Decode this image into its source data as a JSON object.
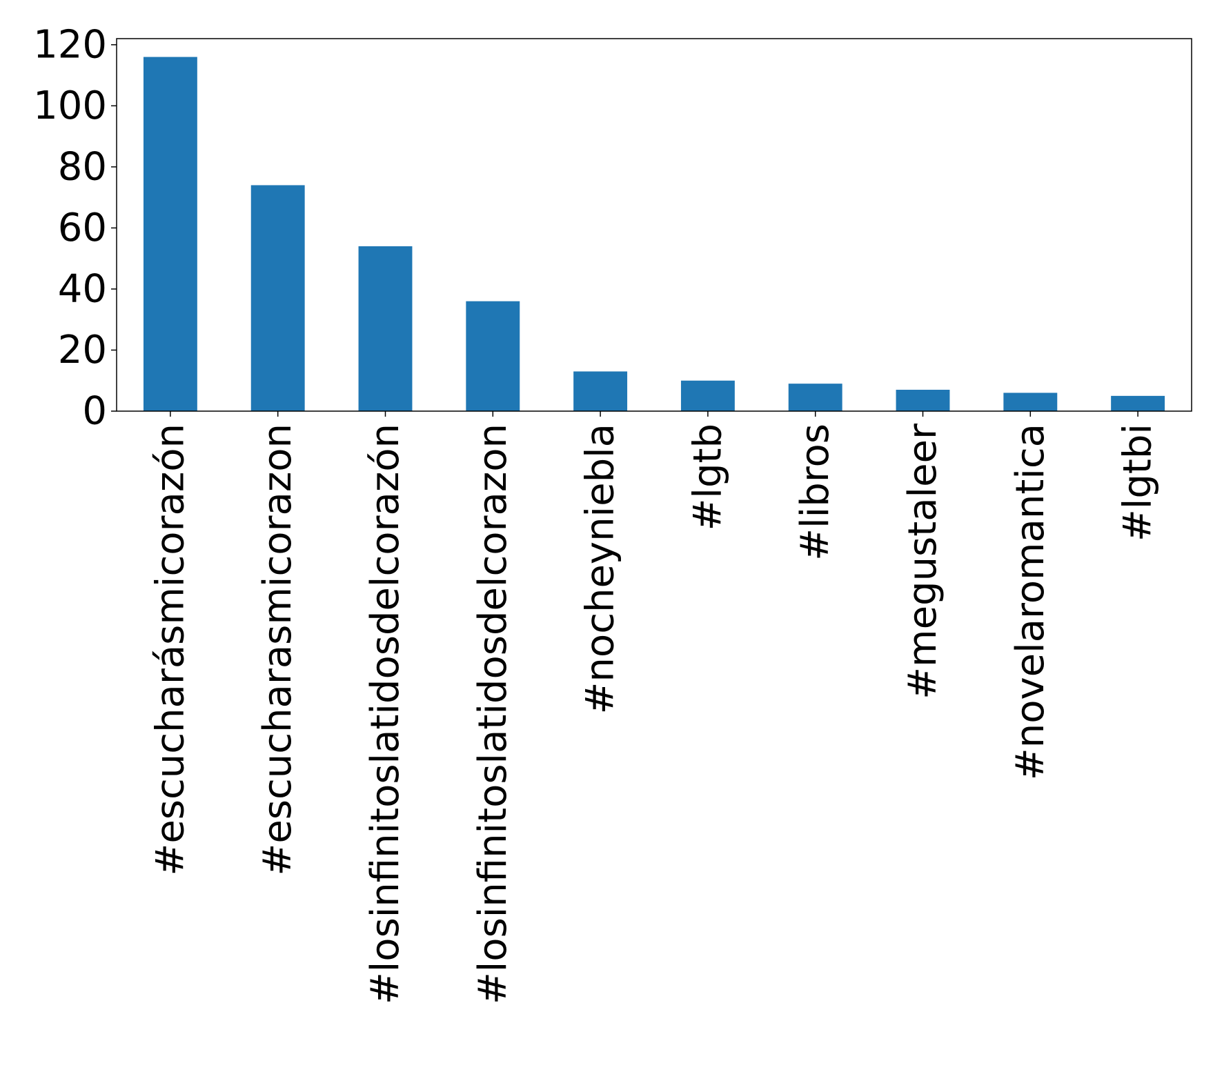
{
  "chart_data": {
    "type": "bar",
    "title": "",
    "xlabel": "",
    "ylabel": "",
    "categories": [
      "#escucharásmicorazón",
      "#escucharasmicorazon",
      "#losinfinitoslatidosdelcorazón",
      "#losinfinitoslatidosdelcorazon",
      "#nocheyniebla",
      "#lgtb",
      "#libros",
      "#megustaleer",
      "#novelaromantica",
      "#lgtbi"
    ],
    "values": [
      116,
      74,
      54,
      36,
      13,
      10,
      9,
      7,
      6,
      5
    ],
    "ylim": [
      0,
      122
    ],
    "yticks": [
      0,
      20,
      40,
      60,
      80,
      100,
      120
    ],
    "grid": false,
    "legend": "none",
    "bar_color": "#1f77b4"
  }
}
